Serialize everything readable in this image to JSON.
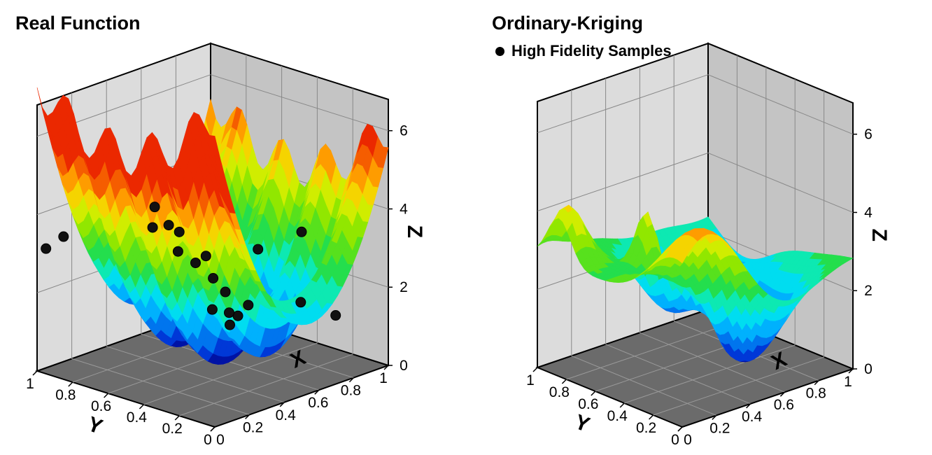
{
  "chart_data": [
    {
      "type": "surface3d",
      "title": "Real Function",
      "xlabel": "X",
      "ylabel": "Y",
      "zlabel": "Z",
      "x_ticks": [
        "0",
        "0.2",
        "0.4",
        "0.6",
        "0.8",
        "1"
      ],
      "y_ticks": [
        "0",
        "0.2",
        "0.4",
        "0.6",
        "0.8",
        "1"
      ],
      "z_ticks": [
        "0",
        "2",
        "4",
        "6"
      ],
      "xlim": [
        0,
        1
      ],
      "ylim": [
        0,
        1
      ],
      "zlim": [
        0,
        6.8
      ],
      "colormap": "jet-banded",
      "samples": [
        {
          "x": 0.35,
          "y": 0.0,
          "z": 4.6
        },
        {
          "x": 0.2,
          "y": 0.0,
          "z": 4.7
        },
        {
          "x": 0.05,
          "y": 0.0,
          "z": 4.3
        },
        {
          "x": 0.0,
          "y": 0.5,
          "z": 4.2
        },
        {
          "x": 0.2,
          "y": 0.7,
          "z": 1.8
        },
        {
          "x": 0.5,
          "y": 0.3,
          "z": 3.3
        },
        {
          "x": 0.45,
          "y": 0.35,
          "z": 3.0
        },
        {
          "x": 0.4,
          "y": 0.4,
          "z": 2.6
        },
        {
          "x": 0.38,
          "y": 0.45,
          "z": 2.2
        },
        {
          "x": 0.3,
          "y": 0.5,
          "z": 1.9
        },
        {
          "x": 0.6,
          "y": 0.6,
          "z": 1.2
        },
        {
          "x": 0.55,
          "y": 0.65,
          "z": 0.8
        },
        {
          "x": 0.7,
          "y": 0.85,
          "z": 0.5
        },
        {
          "x": 0.72,
          "y": 0.82,
          "z": 0.6
        },
        {
          "x": 0.15,
          "y": 0.85,
          "z": 1.3
        },
        {
          "x": 0.05,
          "y": 0.3,
          "z": 4.0
        },
        {
          "x": 0.9,
          "y": 0.05,
          "z": 3.5
        },
        {
          "x": 0.95,
          "y": 0.0,
          "z": 3.2
        },
        {
          "x": 0.65,
          "y": 0.4,
          "z": 3.6
        },
        {
          "x": 0.68,
          "y": 0.35,
          "z": 4.1
        }
      ]
    },
    {
      "type": "surface3d",
      "title": "Ordinary-Kriging",
      "legend": [
        {
          "name": "High Fidelity Samples",
          "marker": "circle",
          "color": "#000000"
        }
      ],
      "xlabel": "X",
      "ylabel": "Y",
      "zlabel": "Z",
      "x_ticks": [
        "0",
        "0.2",
        "0.4",
        "0.6",
        "0.8",
        "1"
      ],
      "y_ticks": [
        "0",
        "0.2",
        "0.4",
        "0.6",
        "0.8",
        "1"
      ],
      "z_ticks": [
        "0",
        "2",
        "4",
        "6"
      ],
      "xlim": [
        0,
        1
      ],
      "ylim": [
        0,
        1
      ],
      "zlim": [
        0,
        6.8
      ],
      "colormap": "jet-banded"
    }
  ]
}
